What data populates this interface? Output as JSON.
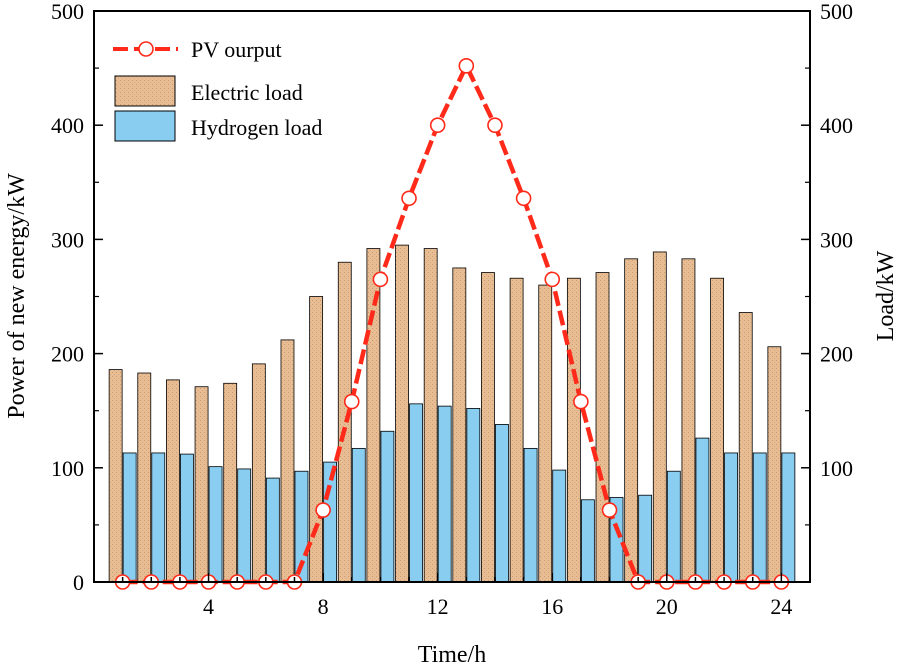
{
  "chart_data": {
    "type": "bar",
    "xlabel": "Time/h",
    "ylabel_left": "Power of new energy/kW",
    "ylabel_right": "Load/kW",
    "xlim": [
      0,
      25
    ],
    "ylim": [
      0,
      500
    ],
    "x_ticks": [
      4,
      8,
      12,
      16,
      20,
      24
    ],
    "y_ticks_left": [
      0,
      100,
      200,
      300,
      400,
      500
    ],
    "y_ticks_right": [
      100,
      200,
      300,
      400,
      500
    ],
    "x": [
      1,
      2,
      3,
      4,
      5,
      6,
      7,
      8,
      9,
      10,
      11,
      12,
      13,
      14,
      15,
      16,
      17,
      18,
      19,
      20,
      21,
      22,
      23,
      24
    ],
    "series": [
      {
        "name": "Electric load",
        "kind": "bar",
        "axis": "right",
        "color": "#e8b98c",
        "values": [
          186,
          183,
          177,
          171,
          174,
          191,
          212,
          250,
          280,
          292,
          295,
          292,
          275,
          271,
          266,
          260,
          266,
          271,
          283,
          289,
          283,
          266,
          236,
          206
        ]
      },
      {
        "name": "Hydrogen load",
        "kind": "bar",
        "axis": "right",
        "color": "#89cdf1",
        "values": [
          113,
          113,
          112,
          101,
          99,
          91,
          97,
          105,
          117,
          132,
          156,
          154,
          152,
          138,
          117,
          98,
          72,
          74,
          76,
          97,
          126,
          113,
          113,
          113
        ]
      },
      {
        "name": "PV ourput",
        "kind": "line",
        "axis": "left",
        "color": "#ff2a1a",
        "values": [
          0,
          0,
          0,
          0,
          0,
          0,
          0,
          63,
          158,
          265,
          336,
          400,
          452,
          400,
          336,
          265,
          158,
          63,
          0,
          0,
          0,
          0,
          0,
          0
        ]
      }
    ],
    "legend": [
      "PV ourput",
      "Electric load",
      "Hydrogen load"
    ],
    "legend_position": "top-left"
  }
}
